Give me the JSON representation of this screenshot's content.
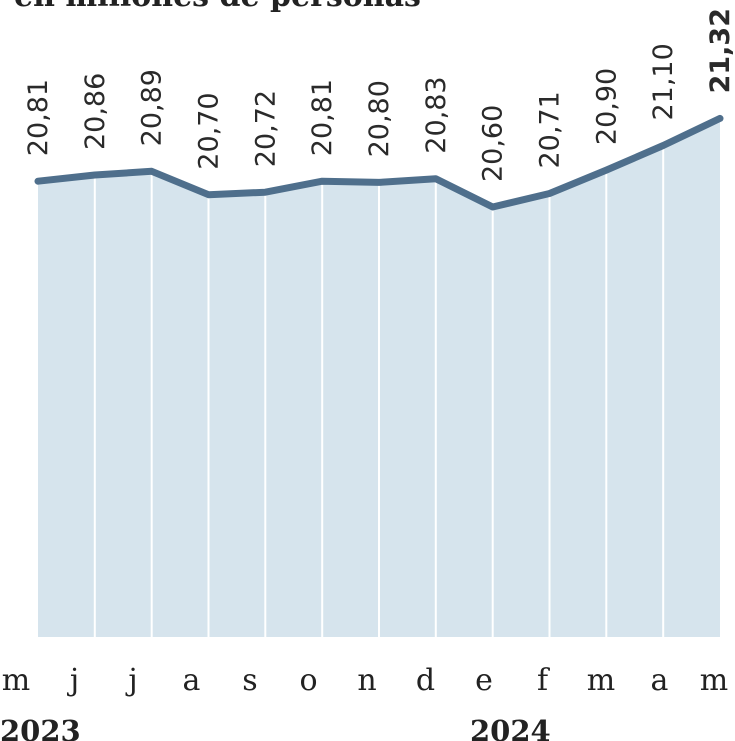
{
  "subtitle": "en millones de personas",
  "chart_data": {
    "type": "area",
    "title": "",
    "xlabel": "",
    "ylabel": "",
    "categories": [
      "m",
      "j",
      "j",
      "a",
      "s",
      "o",
      "n",
      "d",
      "e",
      "f",
      "m",
      "a",
      "m"
    ],
    "years": [
      {
        "label": "2023",
        "category_index": 0
      },
      {
        "label": "2024",
        "category_index": 8
      }
    ],
    "values": [
      20.81,
      20.86,
      20.89,
      20.7,
      20.72,
      20.81,
      20.8,
      20.83,
      20.6,
      20.71,
      20.9,
      21.1,
      21.32
    ],
    "value_labels": [
      "20,81",
      "20,86",
      "20,89",
      "20,70",
      "20,72",
      "20,81",
      "20,80",
      "20,83",
      "20,60",
      "20,71",
      "20,90",
      "21,10",
      "21,32"
    ],
    "highlight_index": 12,
    "grid": "vertical",
    "colors": {
      "fill": "#d6e4ed",
      "line": "#4f6f8c",
      "grid": "#ffffff"
    }
  }
}
